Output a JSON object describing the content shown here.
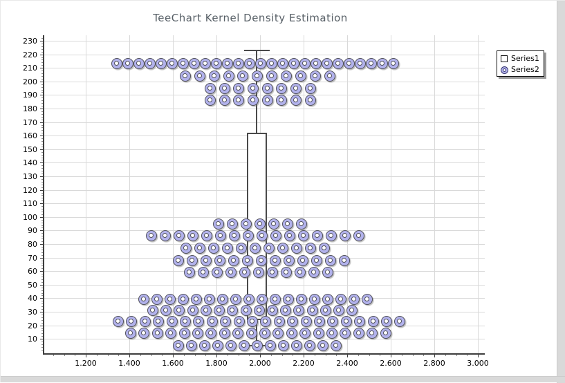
{
  "window": {
    "background": "#ffffff",
    "gutter_color": "#d9d9d9"
  },
  "chart_data": {
    "type": "scatter",
    "title": "TeeChart Kernel Density Estimation",
    "title_color": "#575f66",
    "grid": true,
    "grid_color": "#d9d9d9",
    "axis_color": "#3d3d3d",
    "legend": {
      "position": "top-right",
      "entries": [
        "Series1",
        "Series2"
      ]
    },
    "x_axis": {
      "min": 1.0,
      "max": 3.03,
      "major_tick_step": 0.2,
      "minor_tick_step": 0.05,
      "tick_values": [
        1.2,
        1.4,
        1.6,
        1.8,
        2.0,
        2.2,
        2.4,
        2.6,
        2.8,
        3.0
      ],
      "tick_labels": [
        "1.200",
        "1.400",
        "1.600",
        "1.800",
        "2.000",
        "2.200",
        "2.400",
        "2.600",
        "2.800",
        "3.000"
      ]
    },
    "y_axis": {
      "min": 0,
      "max": 234,
      "major_tick_step": 10,
      "minor_tick_step": 2,
      "tick_values": [
        230,
        220,
        210,
        200,
        190,
        180,
        170,
        160,
        150,
        140,
        130,
        120,
        110,
        100,
        90,
        80,
        70,
        60,
        50,
        40,
        30,
        20,
        10
      ]
    },
    "series": [
      {
        "name": "Series1",
        "type": "box-whisker",
        "x_center": 1.985,
        "box_half_width": 0.046,
        "cap_half_width": 0.059,
        "q1": 24,
        "q3": 162,
        "whisker_top": 223,
        "whisker_bottom": 5,
        "fill": "#ffffff",
        "line_color": "#4a4a4a"
      },
      {
        "name": "Series2",
        "type": "point-rows",
        "marker": "donut",
        "marker_fill": "#b2b2ec",
        "marker_border": "#50505a",
        "marker_px_size": 16,
        "rows": [
          {
            "y": 213,
            "x_start": 1.343,
            "x_step": 0.0508,
            "count": 26
          },
          {
            "y": 204,
            "x_start": 1.657,
            "x_step": 0.0663,
            "count": 11
          },
          {
            "y": 195,
            "x_start": 1.771,
            "x_step": 0.0657,
            "count": 8
          },
          {
            "y": 186,
            "x_start": 1.771,
            "x_step": 0.0657,
            "count": 8
          },
          {
            "y": 95,
            "x_start": 1.81,
            "x_step": 0.0635,
            "count": 7
          },
          {
            "y": 86,
            "x_start": 1.502,
            "x_step": 0.0635,
            "count": 16
          },
          {
            "y": 77,
            "x_start": 1.66,
            "x_step": 0.0635,
            "count": 11
          },
          {
            "y": 68,
            "x_start": 1.625,
            "x_step": 0.0635,
            "count": 13
          },
          {
            "y": 59,
            "x_start": 1.676,
            "x_step": 0.0635,
            "count": 11
          },
          {
            "y": 39,
            "x_start": 1.467,
            "x_step": 0.0603,
            "count": 18
          },
          {
            "y": 31,
            "x_start": 1.508,
            "x_step": 0.061,
            "count": 16
          },
          {
            "y": 23,
            "x_start": 1.349,
            "x_step": 0.0616,
            "count": 22
          },
          {
            "y": 14,
            "x_start": 1.406,
            "x_step": 0.0616,
            "count": 20
          },
          {
            "y": 5,
            "x_start": 1.625,
            "x_step": 0.0603,
            "count": 13
          }
        ]
      }
    ]
  }
}
